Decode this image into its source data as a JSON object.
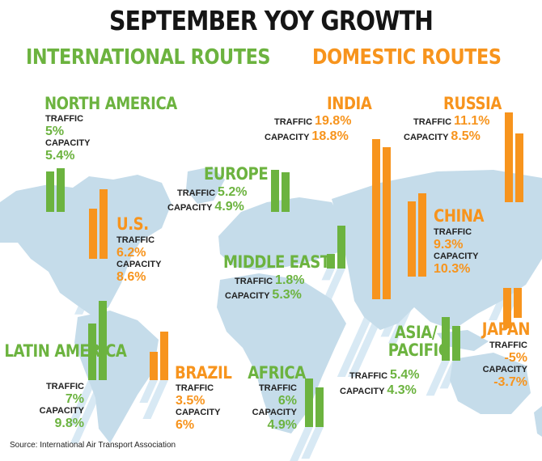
{
  "title": "SEPTEMBER YOY GROWTH",
  "legend": {
    "international": "INTERNATIONAL ROUTES",
    "domestic": "DOMESTIC ROUTES"
  },
  "labels": {
    "traffic": "TRAFFIC",
    "capacity": "CAPACITY"
  },
  "source": "Source: International Air Transport Association",
  "colors": {
    "international": "#6cb33f",
    "domestic": "#f7941d",
    "map": "#c5dcea",
    "shadow": "#d8e9f4",
    "title": "#151515"
  },
  "chart_data": {
    "type": "bar",
    "title": "SEPTEMBER YOY GROWTH",
    "series": [
      {
        "name": "INTERNATIONAL ROUTES",
        "color": "#6cb33f"
      },
      {
        "name": "DOMESTIC ROUTES",
        "color": "#f7941d"
      }
    ],
    "regions": [
      {
        "name": "NORTH AMERICA",
        "type": "international",
        "traffic": 5,
        "capacity": 5.4,
        "traffic_label": "5%",
        "capacity_label": "5.4%"
      },
      {
        "name": "U.S.",
        "type": "domestic",
        "traffic": 6.2,
        "capacity": 8.6,
        "traffic_label": "6.2%",
        "capacity_label": "8.6%"
      },
      {
        "name": "EUROPE",
        "type": "international",
        "traffic": 5.2,
        "capacity": 4.9,
        "traffic_label": "5.2%",
        "capacity_label": "4.9%"
      },
      {
        "name": "MIDDLE EAST",
        "type": "international",
        "traffic": 1.8,
        "capacity": 5.3,
        "traffic_label": "1.8%",
        "capacity_label": "5.3%"
      },
      {
        "name": "INDIA",
        "type": "domestic",
        "traffic": 19.8,
        "capacity": 18.8,
        "traffic_label": "19.8%",
        "capacity_label": "18.8%"
      },
      {
        "name": "RUSSIA",
        "type": "domestic",
        "traffic": 11.1,
        "capacity": 8.5,
        "traffic_label": "11.1%",
        "capacity_label": "8.5%"
      },
      {
        "name": "CHINA",
        "type": "domestic",
        "traffic": 9.3,
        "capacity": 10.3,
        "traffic_label": "9.3%",
        "capacity_label": "10.3%"
      },
      {
        "name": "LATIN AMERICA",
        "type": "international",
        "traffic": 7,
        "capacity": 9.8,
        "traffic_label": "7%",
        "capacity_label": "9.8%"
      },
      {
        "name": "BRAZIL",
        "type": "domestic",
        "traffic": 3.5,
        "capacity": 6,
        "traffic_label": "3.5%",
        "capacity_label": "6%"
      },
      {
        "name": "AFRICA",
        "type": "international",
        "traffic": 6,
        "capacity": 4.9,
        "traffic_label": "6%",
        "capacity_label": "4.9%"
      },
      {
        "name": "ASIA/ PACIFIC",
        "type": "international",
        "traffic": 5.4,
        "capacity": 4.3,
        "traffic_label": "5.4%",
        "capacity_label": "4.3%"
      },
      {
        "name": "JAPAN",
        "type": "domestic",
        "traffic": -5,
        "capacity": -3.7,
        "traffic_label": "-5%",
        "capacity_label": "-3.7%"
      }
    ]
  }
}
